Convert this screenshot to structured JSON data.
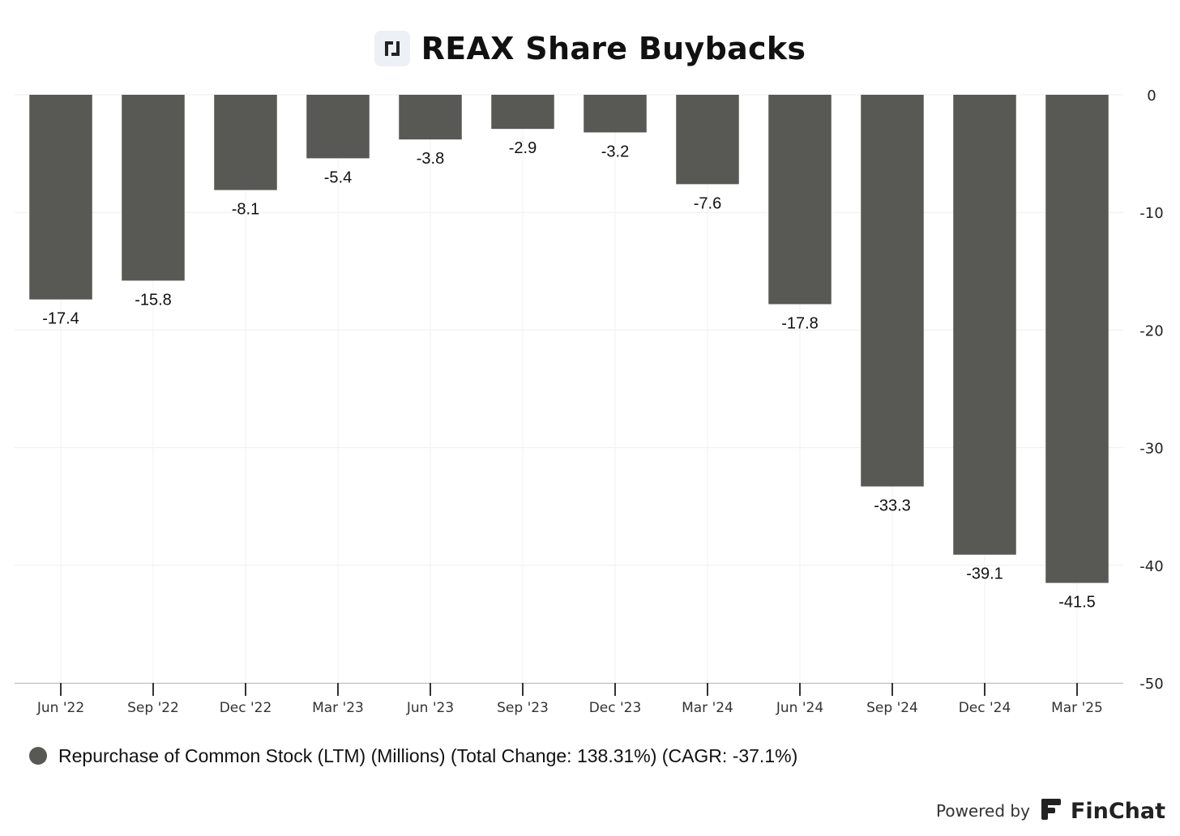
{
  "header": {
    "title": "REAX Share Buybacks"
  },
  "chart_data": {
    "type": "bar",
    "title": "REAX Share Buybacks",
    "categories": [
      "Jun '22",
      "Sep '22",
      "Dec '22",
      "Mar '23",
      "Jun '23",
      "Sep '23",
      "Dec '23",
      "Mar '24",
      "Jun '24",
      "Sep '24",
      "Dec '24",
      "Mar '25"
    ],
    "series": [
      {
        "name": "Repurchase of Common Stock (LTM) (Millions) (Total Change: 138.31%) (CAGR: -37.1%)",
        "values": [
          -17.4,
          -15.8,
          -8.1,
          -5.4,
          -3.8,
          -2.9,
          -3.2,
          -7.6,
          -17.8,
          -33.3,
          -39.1,
          -41.5
        ],
        "labels": [
          "-17.4",
          "-15.8",
          "-8.1",
          "-5.4",
          "-3.8",
          "-2.9",
          "-3.2",
          "-7.6",
          "-17.8",
          "-33.3",
          "-39.1",
          "-41.5"
        ]
      }
    ],
    "ylim": [
      -50,
      0
    ],
    "yticks": [
      0,
      -10,
      -20,
      -30,
      -40,
      -50
    ],
    "ytick_labels": [
      "0",
      "-10",
      "-20",
      "-30",
      "-40",
      "-50"
    ],
    "y_axis_side": "right",
    "grid": true,
    "legend_position": "bottom-left",
    "bar_color": "#585854"
  },
  "legend": {
    "label": "Repurchase of Common Stock (LTM) (Millions) (Total Change: 138.31%) (CAGR: -37.1%)",
    "color": "#585854"
  },
  "footer": {
    "powered_by": "Powered by",
    "brand": "FinChat"
  }
}
